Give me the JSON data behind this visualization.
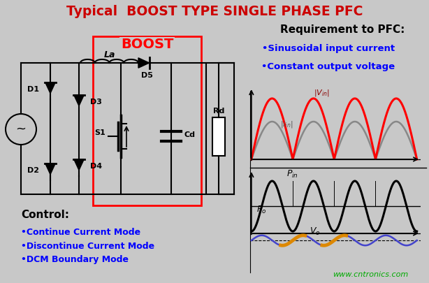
{
  "title": "Typical  BOOST TYPE SINGLE PHASE PFC",
  "title_color": "#cc0000",
  "title_fontsize": 13.5,
  "bg_color": "#c8c8c8",
  "req_title": "Requirement to PFC:",
  "req1": "•Sinusoidal input current",
  "req2": "•Constant output voltage",
  "control_title": "Control:",
  "ctrl1": "•Continue Current Mode",
  "ctrl2": "•Discontinue Current Mode",
  "ctrl3": "•DCM Boundary Mode",
  "watermark": "www.cntronics.com",
  "boost_label": "BOOST"
}
